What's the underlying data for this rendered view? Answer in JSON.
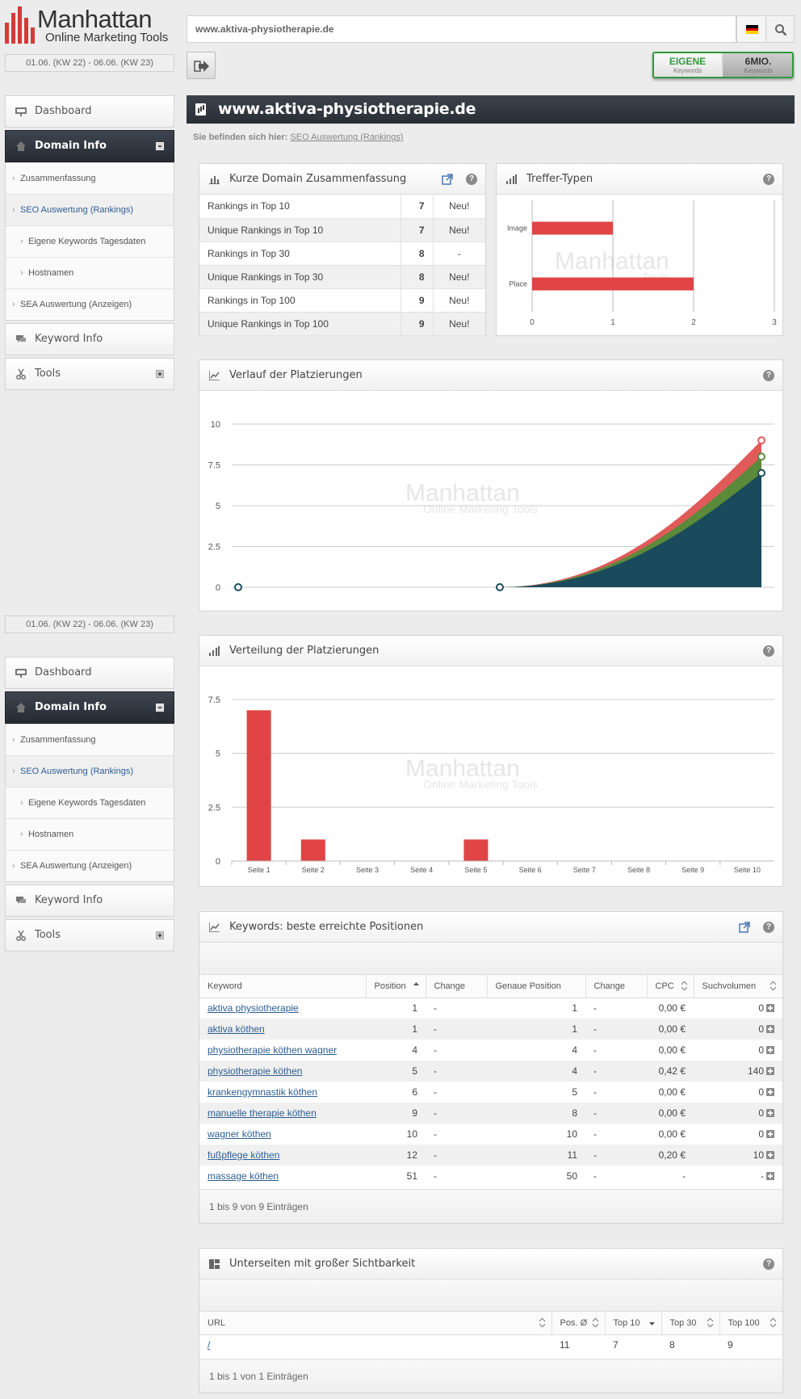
{
  "brand": {
    "title": "Manhattan",
    "subtitle": "Online Marketing Tools"
  },
  "search": {
    "value": "www.aktiva-physiotherapie.de"
  },
  "date_range": "01.06. (KW 22) - 06.06. (KW 23)",
  "keyword_toggle": {
    "own": {
      "label": "EIGENE",
      "sub": "Keywords"
    },
    "six_m": {
      "label": "6MIO.",
      "sub": "Keywords"
    }
  },
  "sidebar": {
    "dashboard": "Dashboard",
    "domain_info": "Domain Info",
    "sub": {
      "summary": "Zusammenfassung",
      "seo": "SEO Auswertung (Rankings)",
      "own_kw": "Eigene Keywords Tagesdaten",
      "hosts": "Hostnamen",
      "sea": "SEA Auswertung (Anzeigen)"
    },
    "keyword_info": "Keyword Info",
    "tools": "Tools"
  },
  "page": {
    "title": "www.aktiva-physiotherapie.de",
    "breadcrumb_prefix": "Sie befinden sich hier:",
    "breadcrumb_link": "SEO Auswertung (Rankings)"
  },
  "summary": {
    "title": "Kurze Domain Zusammenfassung",
    "rows": [
      {
        "label": "Rankings in Top 10",
        "value": "7",
        "status": "Neu!"
      },
      {
        "label": "Unique Rankings in Top 10",
        "value": "7",
        "status": "Neu!"
      },
      {
        "label": "Rankings in Top 30",
        "value": "8",
        "status": "-"
      },
      {
        "label": "Unique Rankings in Top 30",
        "value": "8",
        "status": "Neu!"
      },
      {
        "label": "Rankings in Top 100",
        "value": "9",
        "status": "Neu!"
      },
      {
        "label": "Unique Rankings in Top 100",
        "value": "9",
        "status": "Neu!"
      }
    ]
  },
  "hit_types": {
    "title": "Treffer-Typen",
    "chart_data": {
      "type": "bar",
      "orientation": "horizontal",
      "categories": [
        "Image",
        "Place"
      ],
      "values": [
        1,
        2
      ],
      "xlim": [
        0,
        3
      ],
      "ticks": [
        "0",
        "1",
        "2",
        "3"
      ],
      "color": "#e04444"
    }
  },
  "history": {
    "title": "Verlauf der Platzierungen",
    "chart_data": {
      "type": "area",
      "ylim": [
        0,
        10
      ],
      "yticks": [
        "0",
        "2.5",
        "5",
        "7.5",
        "10"
      ],
      "x": [
        0,
        1,
        2
      ],
      "series": [
        {
          "values": [
            0,
            0,
            9
          ],
          "color": "#e05a5a"
        },
        {
          "values": [
            0,
            0,
            8
          ],
          "color": "#5b8a3a"
        },
        {
          "values": [
            0,
            0,
            7
          ],
          "color": "#1a4b5c"
        }
      ]
    }
  },
  "distribution": {
    "title": "Verteilung der Platzierungen",
    "chart_data": {
      "type": "bar",
      "categories": [
        "Seite 1",
        "Seite 2",
        "Seite 3",
        "Seite 4",
        "Seite 5",
        "Seite 6",
        "Seite 7",
        "Seite 8",
        "Seite 9",
        "Seite 10"
      ],
      "values": [
        7,
        1,
        0,
        0,
        1,
        0,
        0,
        0,
        0,
        0
      ],
      "ylim": [
        0,
        7.5
      ],
      "yticks": [
        "0",
        "2.5",
        "5",
        "7.5"
      ],
      "color": "#e04444"
    }
  },
  "watermark": {
    "title": "Manhattan",
    "subtitle": "Online Marketing Tools",
    "short_sub": "Tools"
  },
  "keywords": {
    "title": "Keywords: beste erreichte Positionen",
    "columns": [
      "Keyword",
      "Position",
      "Change",
      "Genaue Position",
      "Change",
      "CPC",
      "Suchvolumen"
    ],
    "rows": [
      {
        "kw": "aktiva physiotherapie",
        "pos": "1",
        "ch": "-",
        "exact": "1",
        "ch2": "-",
        "cpc": "0,00 €",
        "vol": "0"
      },
      {
        "kw": "aktiva köthen",
        "pos": "1",
        "ch": "-",
        "exact": "1",
        "ch2": "-",
        "cpc": "0,00 €",
        "vol": "0"
      },
      {
        "kw": "physiotherapie köthen wagner",
        "pos": "4",
        "ch": "-",
        "exact": "4",
        "ch2": "-",
        "cpc": "0,00 €",
        "vol": "0"
      },
      {
        "kw": "physiotherapie köthen",
        "pos": "5",
        "ch": "-",
        "exact": "4",
        "ch2": "-",
        "cpc": "0,42 €",
        "vol": "140"
      },
      {
        "kw": "krankengymnastik köthen",
        "pos": "6",
        "ch": "-",
        "exact": "5",
        "ch2": "-",
        "cpc": "0,00 €",
        "vol": "0"
      },
      {
        "kw": "manuelle therapie köthen",
        "pos": "9",
        "ch": "-",
        "exact": "8",
        "ch2": "-",
        "cpc": "0,00 €",
        "vol": "0"
      },
      {
        "kw": "wagner köthen",
        "pos": "10",
        "ch": "-",
        "exact": "10",
        "ch2": "-",
        "cpc": "0,00 €",
        "vol": "0"
      },
      {
        "kw": "fußpflege köthen",
        "pos": "12",
        "ch": "-",
        "exact": "11",
        "ch2": "-",
        "cpc": "0,20 €",
        "vol": "10"
      },
      {
        "kw": "massage köthen",
        "pos": "51",
        "ch": "-",
        "exact": "50",
        "ch2": "-",
        "cpc": "-",
        "vol": "-"
      }
    ],
    "footer": "1 bis 9 von 9 Einträgen"
  },
  "subpages": {
    "title": "Unterseiten mit großer Sichtbarkeit",
    "columns": [
      "URL",
      "Pos. Ø",
      "Top 10",
      "Top 30",
      "Top 100"
    ],
    "rows": [
      {
        "url": "/",
        "pos": "11",
        "top10": "7",
        "top30": "8",
        "top100": "9"
      }
    ],
    "footer": "1 bis 1 von 1 Einträgen"
  },
  "colors": {
    "accent": "#2e9b3c",
    "bar": "#e04444",
    "dark": "#2a2f36",
    "link": "#2d5e93"
  }
}
